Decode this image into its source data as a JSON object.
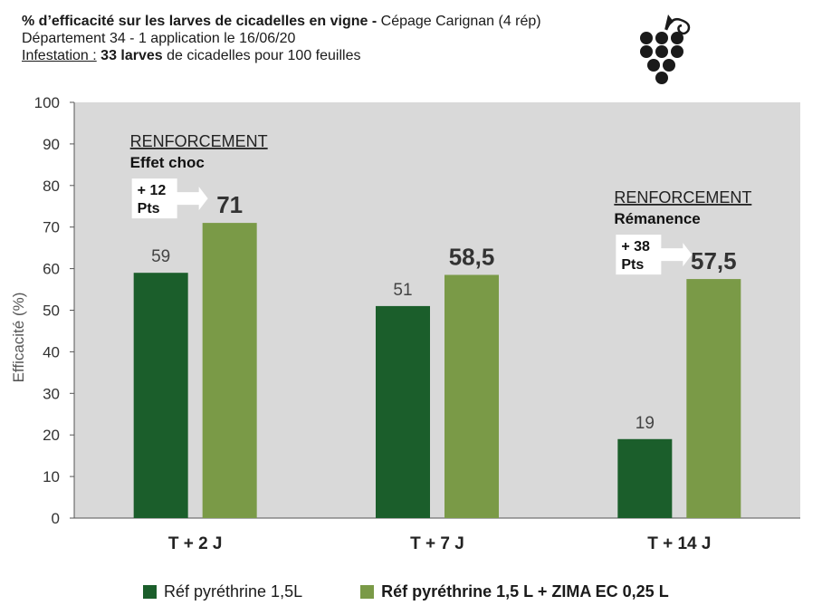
{
  "header": {
    "title_bold": "% d’efficacité sur les larves de cicadelles en vigne -",
    "title_rest": " Cépage Carignan (4 rép)",
    "line2": "Département 34 - 1 application le 16/06/20",
    "line3_label": "Infestation :",
    "line3_bold": " 33 larves",
    "line3_rest": " de cicadelles pour 100 feuilles"
  },
  "logo": {
    "icon": "grape-icon"
  },
  "colors": {
    "dark": "#1b5e2b",
    "light": "#7a9a47",
    "plot_bg": "#d9d9d9"
  },
  "chart_data": {
    "type": "bar",
    "ylabel": "Efficacité (%)",
    "ylim": [
      0,
      100
    ],
    "yticks": [
      0,
      10,
      20,
      30,
      40,
      50,
      60,
      70,
      80,
      90,
      100
    ],
    "categories": [
      "T + 2 J",
      "T + 7 J",
      "T + 14 J"
    ],
    "series": [
      {
        "name": "Réf pyréthrine 1,5L",
        "values": [
          59,
          51,
          19
        ],
        "labels": [
          "59",
          "51",
          "19"
        ]
      },
      {
        "name": "Réf pyréthrine 1,5 L + ZIMA EC 0,25 L",
        "values": [
          71,
          58.5,
          57.5
        ],
        "labels": [
          "71",
          "58,5",
          "57,5"
        ]
      }
    ],
    "annotations": [
      {
        "category": "T + 2 J",
        "heading": "RENFORCEMENT",
        "subheading": "Effet choc",
        "gain_line1": "+ 12",
        "gain_line2": "Pts"
      },
      {
        "category": "T + 14 J",
        "heading": "RENFORCEMENT",
        "subheading": "Rémanence",
        "gain_line1": "+ 38",
        "gain_line2": "Pts"
      }
    ],
    "grid": false,
    "legend_position": "bottom"
  }
}
